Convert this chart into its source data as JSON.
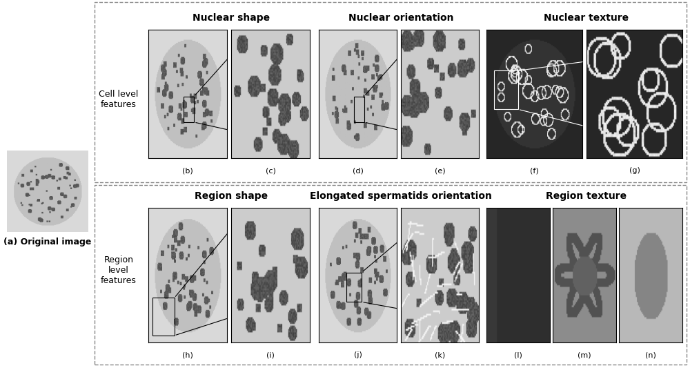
{
  "bg_color": "#ffffff",
  "dashed_border_color": "#aaaaaa",
  "cell_label": "Cell level\nfeatures",
  "region_label": "Region\nlevel\nfeatures",
  "original_label": "(a) Original image",
  "top_titles": [
    "Nuclear shape",
    "Nuclear orientation",
    "Nuclear texture"
  ],
  "bottom_titles": [
    "Region shape",
    "Elongated spermatids orientation",
    "Region texture"
  ],
  "sub_labels_top": [
    "(b)",
    "(c)",
    "(d)",
    "(e)",
    "(f)",
    "(g)"
  ],
  "sub_labels_bottom": [
    "(h)",
    "(i)",
    "(j)",
    "(k)",
    "(l)",
    "(m)",
    "(n)"
  ],
  "label_fontsize": 9,
  "title_fontsize": 10
}
